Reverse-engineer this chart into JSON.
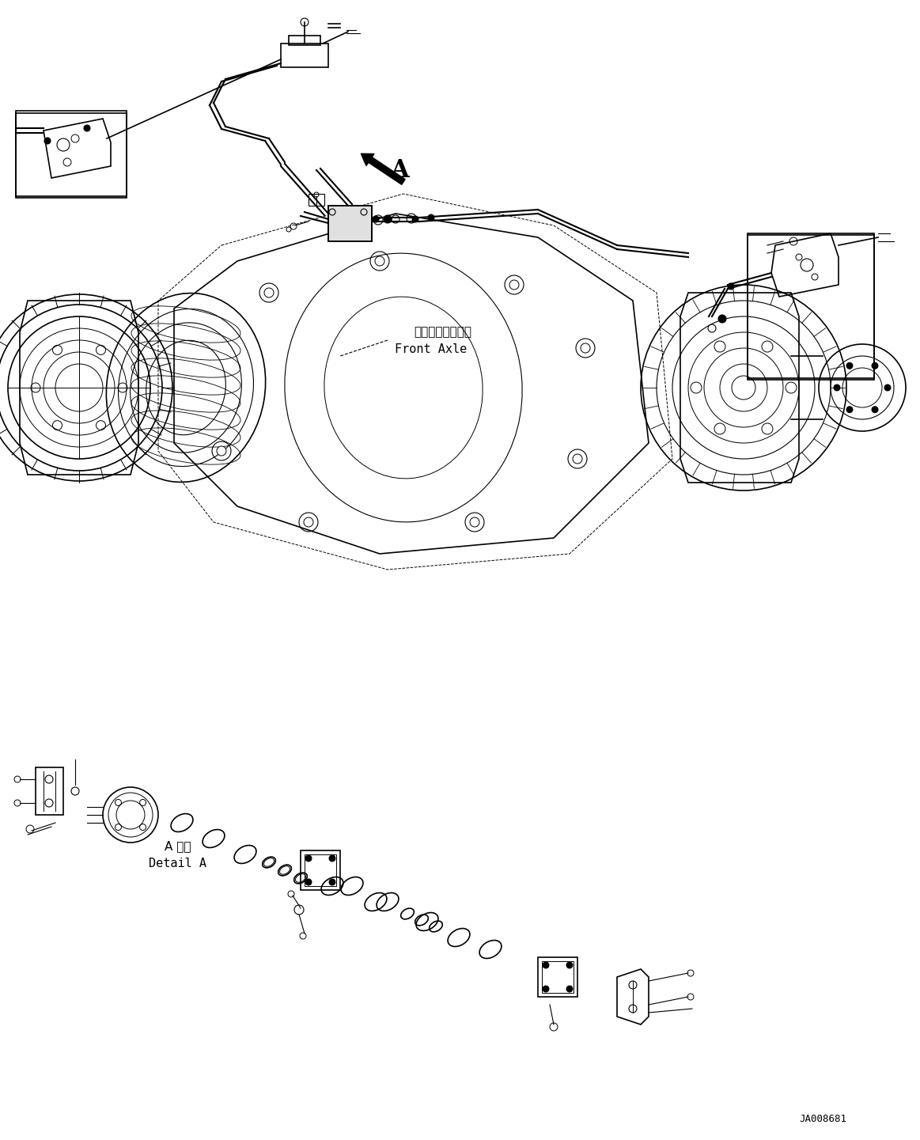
{
  "title": "",
  "background_color": "#ffffff",
  "line_color": "#000000",
  "text_color": "#000000",
  "label_a": "A",
  "label_front_axle_jp": "フロントアクスル",
  "label_front_axle_en": "Front Axle",
  "label_detail_jp": "A 詳細",
  "label_detail_en": "Detail A",
  "label_code": "JA008681",
  "fig_width": 11.63,
  "fig_height": 14.41,
  "dpi": 100
}
